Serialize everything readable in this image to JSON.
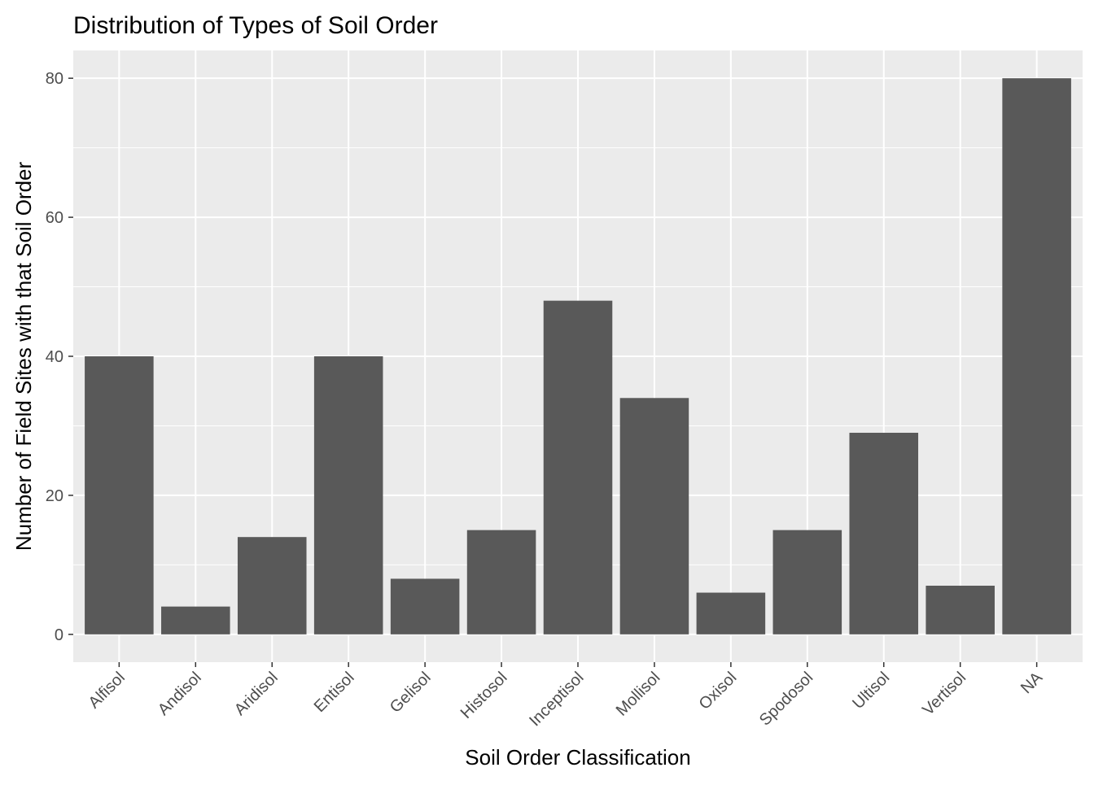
{
  "chart_data": {
    "type": "bar",
    "title": "Distribution of Types of Soil Order",
    "xlabel": "Soil Order Classification",
    "ylabel": "Number of Field Sites with that Soil Order",
    "categories": [
      "Alfisol",
      "Andisol",
      "Aridisol",
      "Entisol",
      "Gelisol",
      "Histosol",
      "Inceptisol",
      "Mollisol",
      "Oxisol",
      "Spodosol",
      "Ultisol",
      "Vertisol",
      "NA"
    ],
    "values": [
      40,
      4,
      14,
      40,
      8,
      15,
      48,
      34,
      6,
      15,
      29,
      7,
      80
    ],
    "ylim": [
      -4,
      84
    ],
    "yticks": [
      0,
      20,
      40,
      60,
      80
    ],
    "grid": true,
    "legend": "none",
    "colors": {
      "bar": "#595959",
      "panel": "#ebebeb",
      "grid": "#ffffff",
      "tick_text": "#4d4d4d",
      "tick_mark": "#333333"
    }
  }
}
